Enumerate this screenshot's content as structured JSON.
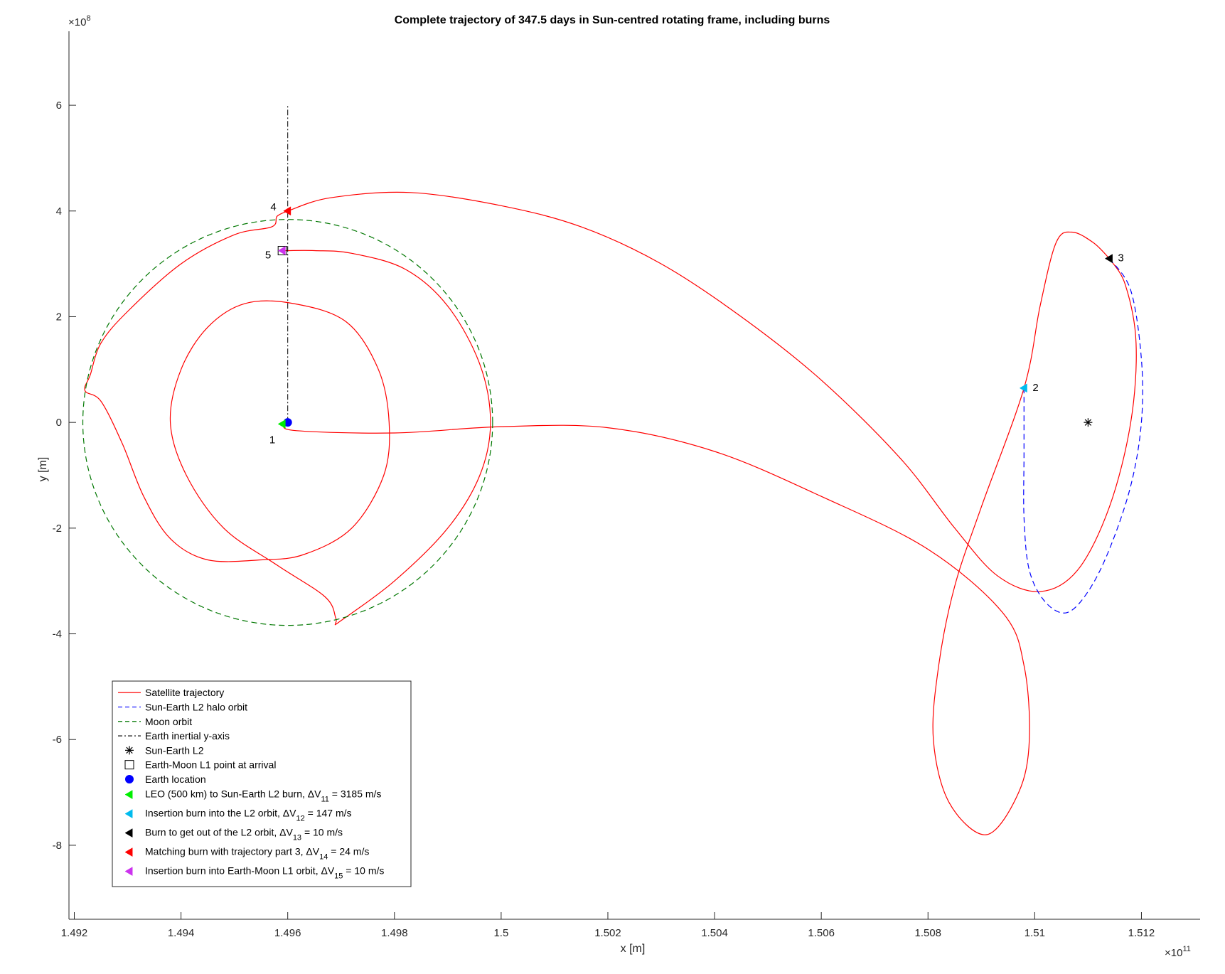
{
  "chart_data": {
    "type": "line",
    "title": "Complete trajectory of 347.5 days in Sun-centred rotating frame, including burns",
    "xlabel": "x [m]",
    "ylabel": "y [m]",
    "x_exponent": "×10",
    "x_exponent_power": "11",
    "y_exponent": "×10",
    "y_exponent_power": "8",
    "xlim": [
      1.4919,
      1.5131
    ],
    "ylim": [
      -9.4,
      7.4
    ],
    "x_ticks": [
      1.492,
      1.494,
      1.496,
      1.498,
      1.5,
      1.502,
      1.504,
      1.506,
      1.508,
      1.51,
      1.512
    ],
    "x_tick_labels": [
      "1.492",
      "1.494",
      "1.496",
      "1.498",
      "1.5",
      "1.502",
      "1.504",
      "1.506",
      "1.508",
      "1.51",
      "1.512"
    ],
    "y_ticks": [
      -8,
      -6,
      -4,
      -2,
      0,
      2,
      4,
      6
    ],
    "y_tick_labels": [
      "-8",
      "-6",
      "-4",
      "-2",
      "0",
      "2",
      "4",
      "6"
    ],
    "grid": false,
    "legend_position": "bottom-left",
    "series": [
      {
        "name": "Satellite trajectory",
        "style": "solid",
        "color": "#ff0000",
        "segments": [
          [
            [
              1.496,
              0.0
            ],
            [
              1.4961,
              -0.15
            ],
            [
              1.498,
              -0.2
            ],
            [
              1.5,
              -0.08
            ],
            [
              1.502,
              -0.1
            ],
            [
              1.504,
              -0.55
            ],
            [
              1.506,
              -1.4
            ],
            [
              1.508,
              -2.4
            ],
            [
              1.5094,
              -3.6
            ],
            [
              1.5098,
              -4.6
            ],
            [
              1.5099,
              -6.0
            ],
            [
              1.5097,
              -7.0
            ],
            [
              1.5091,
              -7.8
            ],
            [
              1.5084,
              -7.2
            ],
            [
              1.5081,
              -6.0
            ],
            [
              1.5082,
              -4.6
            ],
            [
              1.5085,
              -3.1
            ],
            [
              1.509,
              -1.6
            ],
            [
              1.5098,
              0.65
            ],
            [
              1.5101,
              2.2
            ],
            [
              1.5104,
              3.4
            ],
            [
              1.5107,
              3.6
            ],
            [
              1.5111,
              3.4
            ],
            [
              1.5114,
              3.1
            ]
          ],
          [
            [
              1.5114,
              3.1
            ],
            [
              1.5117,
              2.6
            ],
            [
              1.5119,
              1.5
            ],
            [
              1.5118,
              0.0
            ],
            [
              1.5114,
              -1.6
            ],
            [
              1.5108,
              -2.8
            ],
            [
              1.5101,
              -3.2
            ],
            [
              1.5093,
              -2.9
            ],
            [
              1.5085,
              -2.0
            ],
            [
              1.5075,
              -0.7
            ],
            [
              1.506,
              0.8
            ],
            [
              1.5045,
              2.0
            ],
            [
              1.503,
              3.0
            ],
            [
              1.5015,
              3.7
            ],
            [
              1.5,
              4.1
            ],
            [
              1.4983,
              4.35
            ],
            [
              1.4968,
              4.25
            ],
            [
              1.496,
              4.0
            ]
          ],
          [
            [
              1.496,
              4.0
            ],
            [
              1.4958,
              3.9
            ],
            [
              1.4957,
              3.7
            ],
            [
              1.495,
              3.55
            ],
            [
              1.494,
              3.0
            ],
            [
              1.493,
              2.1
            ],
            [
              1.4925,
              1.5
            ],
            [
              1.4923,
              0.9
            ],
            [
              1.4922,
              0.6
            ],
            [
              1.4925,
              0.4
            ],
            [
              1.4929,
              -0.4
            ],
            [
              1.4933,
              -1.4
            ],
            [
              1.4938,
              -2.2
            ],
            [
              1.4945,
              -2.6
            ],
            [
              1.4955,
              -2.6
            ],
            [
              1.4963,
              -2.5
            ],
            [
              1.4972,
              -2.0
            ],
            [
              1.4978,
              -1.0
            ],
            [
              1.4979,
              0.0
            ],
            [
              1.4977,
              1.0
            ],
            [
              1.4971,
              1.9
            ],
            [
              1.4961,
              2.25
            ],
            [
              1.4952,
              2.25
            ],
            [
              1.4945,
              1.8
            ],
            [
              1.494,
              1.0
            ],
            [
              1.4938,
              0.0
            ],
            [
              1.4941,
              -1.0
            ],
            [
              1.4948,
              -2.0
            ],
            [
              1.4958,
              -2.7
            ],
            [
              1.4967,
              -3.3
            ],
            [
              1.4969,
              -3.7
            ],
            [
              1.4969,
              -3.8
            ],
            [
              1.497,
              -3.75
            ],
            [
              1.498,
              -3.0
            ],
            [
              1.499,
              -2.0
            ],
            [
              1.4996,
              -1.0
            ],
            [
              1.4998,
              0.0
            ],
            [
              1.4996,
              1.1
            ],
            [
              1.499,
              2.2
            ],
            [
              1.4982,
              2.9
            ],
            [
              1.4972,
              3.2
            ],
            [
              1.4965,
              3.25
            ],
            [
              1.496,
              3.25
            ],
            [
              1.4959,
              3.25
            ]
          ]
        ]
      },
      {
        "name": "Sun-Earth L2 halo orbit",
        "style": "dashed",
        "color": "#0000ff",
        "points": [
          [
            1.5114,
            3.1
          ],
          [
            1.5118,
            2.5
          ],
          [
            1.512,
            1.2
          ],
          [
            1.512,
            0.0
          ],
          [
            1.5118,
            -1.2
          ],
          [
            1.5114,
            -2.4
          ],
          [
            1.511,
            -3.2
          ],
          [
            1.5106,
            -3.6
          ],
          [
            1.5102,
            -3.4
          ],
          [
            1.5099,
            -2.8
          ],
          [
            1.5098,
            -1.8
          ],
          [
            1.5098,
            -0.6
          ],
          [
            1.5098,
            0.65
          ]
        ]
      },
      {
        "name": "Moon orbit",
        "style": "dashed",
        "color": "#007700",
        "center": [
          1.496,
          0.0
        ],
        "radius_x": 0.00384,
        "radius_y": 3.84
      },
      {
        "name": "Earth inertial y-axis",
        "style": "dashdot",
        "color": "#000000",
        "points": [
          [
            1.496,
            0.0
          ],
          [
            1.496,
            6.0
          ]
        ]
      }
    ],
    "markers": [
      {
        "name": "Sun-Earth L2",
        "symbol": "asterisk",
        "color": "#000000",
        "x": 1.511,
        "y": 0.0
      },
      {
        "name": "Earth-Moon L1 point at arrival",
        "symbol": "square",
        "color": "#000000",
        "x": 1.4959,
        "y": 3.25
      },
      {
        "name": "Earth location",
        "symbol": "circle",
        "color": "#0000ff",
        "x": 1.496,
        "y": 0.0
      }
    ],
    "burns": [
      {
        "label": "1",
        "color": "#00ee00",
        "x": 1.4959,
        "y": -0.03,
        "legend_prefix": "LEO (500 km) to Sun-Earth L2 burn, ΔV",
        "legend_sub": "11",
        "legend_suffix": " = 3185 m/s"
      },
      {
        "label": "2",
        "color": "#00bbee",
        "x": 1.5098,
        "y": 0.65,
        "legend_prefix": "Insertion burn into the L2 orbit, ΔV",
        "legend_sub": "12",
        "legend_suffix": " = 147 m/s"
      },
      {
        "label": "3",
        "color": "#000000",
        "x": 1.5114,
        "y": 3.1,
        "legend_prefix": "Burn to get out of the L2 orbit, ΔV",
        "legend_sub": "13",
        "legend_suffix": " = 10 m/s"
      },
      {
        "label": "4",
        "color": "#ff0000",
        "x": 1.496,
        "y": 4.0,
        "legend_prefix": "Matching burn with trajectory part 3, ΔV",
        "legend_sub": "14",
        "legend_suffix": " = 24 m/s"
      },
      {
        "label": "5",
        "color": "#cc33ee",
        "x": 1.4959,
        "y": 3.25,
        "legend_prefix": "Insertion burn into Earth-Moon L1 orbit, ΔV",
        "legend_sub": "15",
        "legend_suffix": " = 10 m/s"
      }
    ]
  }
}
